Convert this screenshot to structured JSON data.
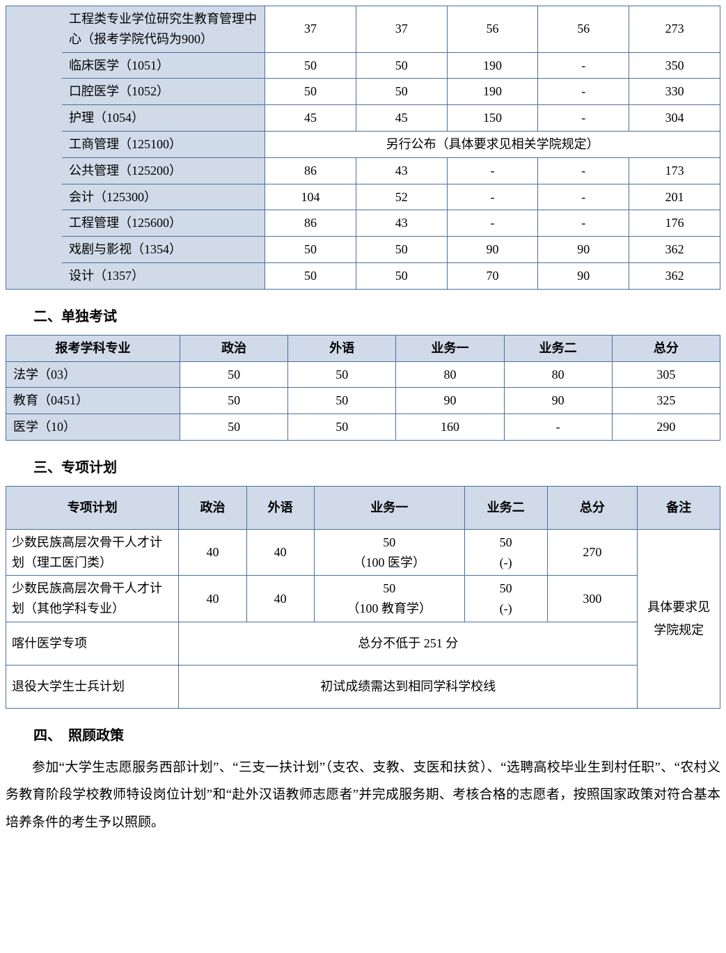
{
  "colors": {
    "header_bg": "#d0dae8",
    "border": "#4a6fa0",
    "text": "#000000",
    "page_bg": "#ffffff"
  },
  "typography": {
    "body_fontsize_pt": 14,
    "heading_fontsize_pt": 15,
    "font_family": "SimSun"
  },
  "table1": {
    "rows": [
      {
        "label": "工程类专业学位研究生教育管理中心（报考学院代码为900）",
        "c1": "37",
        "c2": "37",
        "c3": "56",
        "c4": "56",
        "c5": "273",
        "span": false
      },
      {
        "label": "临床医学（1051）",
        "c1": "50",
        "c2": "50",
        "c3": "190",
        "c4": "-",
        "c5": "350",
        "span": false
      },
      {
        "label": "口腔医学（1052）",
        "c1": "50",
        "c2": "50",
        "c3": "190",
        "c4": "-",
        "c5": "330",
        "span": false
      },
      {
        "label": "护理（1054）",
        "c1": "45",
        "c2": "45",
        "c3": "150",
        "c4": "-",
        "c5": "304",
        "span": false
      },
      {
        "label": "工商管理（125100）",
        "merged": "另行公布（具体要求见相关学院规定）",
        "span": true
      },
      {
        "label": "公共管理（125200）",
        "c1": "86",
        "c2": "43",
        "c3": "-",
        "c4": "-",
        "c5": "173",
        "span": false
      },
      {
        "label": "会计（125300）",
        "c1": "104",
        "c2": "52",
        "c3": "-",
        "c4": "-",
        "c5": "201",
        "span": false
      },
      {
        "label": "工程管理（125600）",
        "c1": "86",
        "c2": "43",
        "c3": "-",
        "c4": "-",
        "c5": "176",
        "span": false
      },
      {
        "label": "戏剧与影视（1354）",
        "c1": "50",
        "c2": "50",
        "c3": "90",
        "c4": "90",
        "c5": "362",
        "span": false
      },
      {
        "label": "设计（1357）",
        "c1": "50",
        "c2": "50",
        "c3": "70",
        "c4": "90",
        "c5": "362",
        "span": false
      }
    ]
  },
  "section2": {
    "title": "二、单独考试",
    "headers": {
      "h0": "报考学科专业",
      "h1": "政治",
      "h2": "外语",
      "h3": "业务一",
      "h4": "业务二",
      "h5": "总分"
    },
    "rows": [
      {
        "label": "法学（03）",
        "c1": "50",
        "c2": "50",
        "c3": "80",
        "c4": "80",
        "c5": "305"
      },
      {
        "label": "教育（0451）",
        "c1": "50",
        "c2": "50",
        "c3": "90",
        "c4": "90",
        "c5": "325"
      },
      {
        "label": "医学（10）",
        "c1": "50",
        "c2": "50",
        "c3": "160",
        "c4": "-",
        "c5": "290"
      }
    ]
  },
  "section3": {
    "title": "三、专项计划",
    "headers": {
      "h0": "专项计划",
      "h1": "政治",
      "h2": "外语",
      "h3": "业务一",
      "h4": "业务二",
      "h5": "总分",
      "h6": "备注"
    },
    "row1": {
      "label": "少数民族高层次骨干人才计划（理工医门类）",
      "c1": "40",
      "c2": "40",
      "c3a": "50",
      "c3b": "（100 医学）",
      "c4a": "50",
      "c4b": "(-)",
      "c5": "270"
    },
    "row2": {
      "label": "少数民族高层次骨干人才计划（其他学科专业）",
      "c1": "40",
      "c2": "40",
      "c3a": "50",
      "c3b": "（100 教育学）",
      "c4a": "50",
      "c4b": "(-)",
      "c5": "300"
    },
    "row3": {
      "label": "喀什医学专项",
      "merged": "总分不低于 251 分"
    },
    "row4": {
      "label": "退役大学生士兵计划",
      "merged": "初试成绩需达到相同学科学校线"
    },
    "remark": "具体要求见学院规定"
  },
  "section4": {
    "title": "四、　照顾政策",
    "paragraph": "参加“大学生志愿服务西部计划”、“三支一扶计划”（支农、支教、支医和扶贫）、“选聘高校毕业生到村任职”、“农村义务教育阶段学校教师特设岗位计划”和“赴外汉语教师志愿者”并完成服务期、考核合格的志愿者，按照国家政策对符合基本培养条件的考生予以照顾。"
  }
}
